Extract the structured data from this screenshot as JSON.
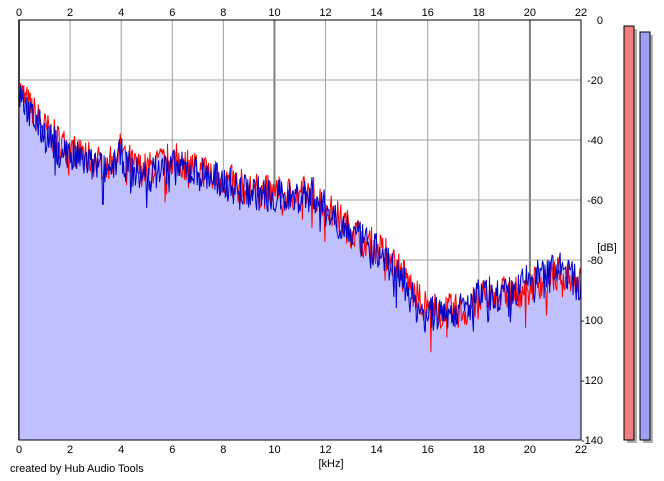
{
  "credit": "created by Hub Audio Tools",
  "colors": {
    "background": "#ffffff",
    "fill": "#c0c0ff",
    "left_channel": "#ff0000",
    "right_channel": "#0000c8",
    "grid": "#a0a0a0",
    "grid_major": "#808080",
    "meter_left": "#f08080",
    "meter_right": "#a0a0f0"
  },
  "meters": [
    {
      "name": "left",
      "color": "#f08080",
      "level_db": 0
    },
    {
      "name": "right",
      "color": "#a0a0f0",
      "level_db": 0
    }
  ],
  "chart_data": {
    "type": "area",
    "title": "",
    "xlabel": "[kHz]",
    "ylabel": "[dB]",
    "xlim": [
      0,
      22
    ],
    "ylim": [
      -140,
      0
    ],
    "x_ticks": [
      "0",
      "2",
      "4",
      "6",
      "8",
      "10",
      "12",
      "14",
      "16",
      "18",
      "20",
      "22"
    ],
    "y_ticks": [
      "0",
      "-20",
      "-40",
      "-60",
      "-80",
      "-100",
      "-120",
      "-140"
    ],
    "grid": true,
    "series": [
      {
        "color": "#ff0000",
        "x": [
          0,
          0.5,
          1,
          1.5,
          2,
          2.5,
          3,
          3.5,
          4,
          4.5,
          5,
          5.5,
          6,
          6.5,
          7,
          7.5,
          8,
          8.5,
          9,
          9.5,
          10,
          10.5,
          11,
          11.5,
          12,
          12.5,
          13,
          13.5,
          14,
          14.5,
          15,
          15.5,
          16,
          16.5,
          17,
          17.5,
          18,
          18.5,
          19,
          19.5,
          20,
          20.5,
          21,
          21.5,
          22
        ],
        "values": [
          -23,
          -30,
          -36,
          -40,
          -43,
          -45,
          -47,
          -48,
          -43,
          -49,
          -50,
          -48,
          -46,
          -48,
          -49,
          -51,
          -53,
          -55,
          -56,
          -57,
          -58,
          -58,
          -58,
          -57,
          -62,
          -66,
          -70,
          -73,
          -76,
          -79,
          -83,
          -92,
          -96,
          -97,
          -97,
          -97,
          -93,
          -92,
          -91,
          -91,
          -88,
          -87,
          -85,
          -84,
          -88
        ]
      },
      {
        "color": "#0000c8",
        "x": [
          0,
          0.5,
          1,
          1.5,
          2,
          2.5,
          3,
          3.5,
          4,
          4.5,
          5,
          5.5,
          6,
          6.5,
          7,
          7.5,
          8,
          8.5,
          9,
          9.5,
          10,
          10.5,
          11,
          11.5,
          12,
          12.5,
          13,
          13.5,
          14,
          14.5,
          15,
          15.5,
          16,
          16.5,
          17,
          17.5,
          18,
          18.5,
          19,
          19.5,
          20,
          20.5,
          21,
          21.5,
          22
        ],
        "values": [
          -25,
          -32,
          -38,
          -42,
          -45,
          -47,
          -49,
          -50,
          -45,
          -51,
          -52,
          -50,
          -49,
          -50,
          -51,
          -52,
          -54,
          -56,
          -57,
          -58,
          -59,
          -59,
          -59,
          -58,
          -63,
          -67,
          -71,
          -74,
          -77,
          -81,
          -86,
          -95,
          -98,
          -98,
          -97,
          -96,
          -92,
          -91,
          -92,
          -90,
          -86,
          -85,
          -83,
          -84,
          -90
        ]
      }
    ]
  }
}
